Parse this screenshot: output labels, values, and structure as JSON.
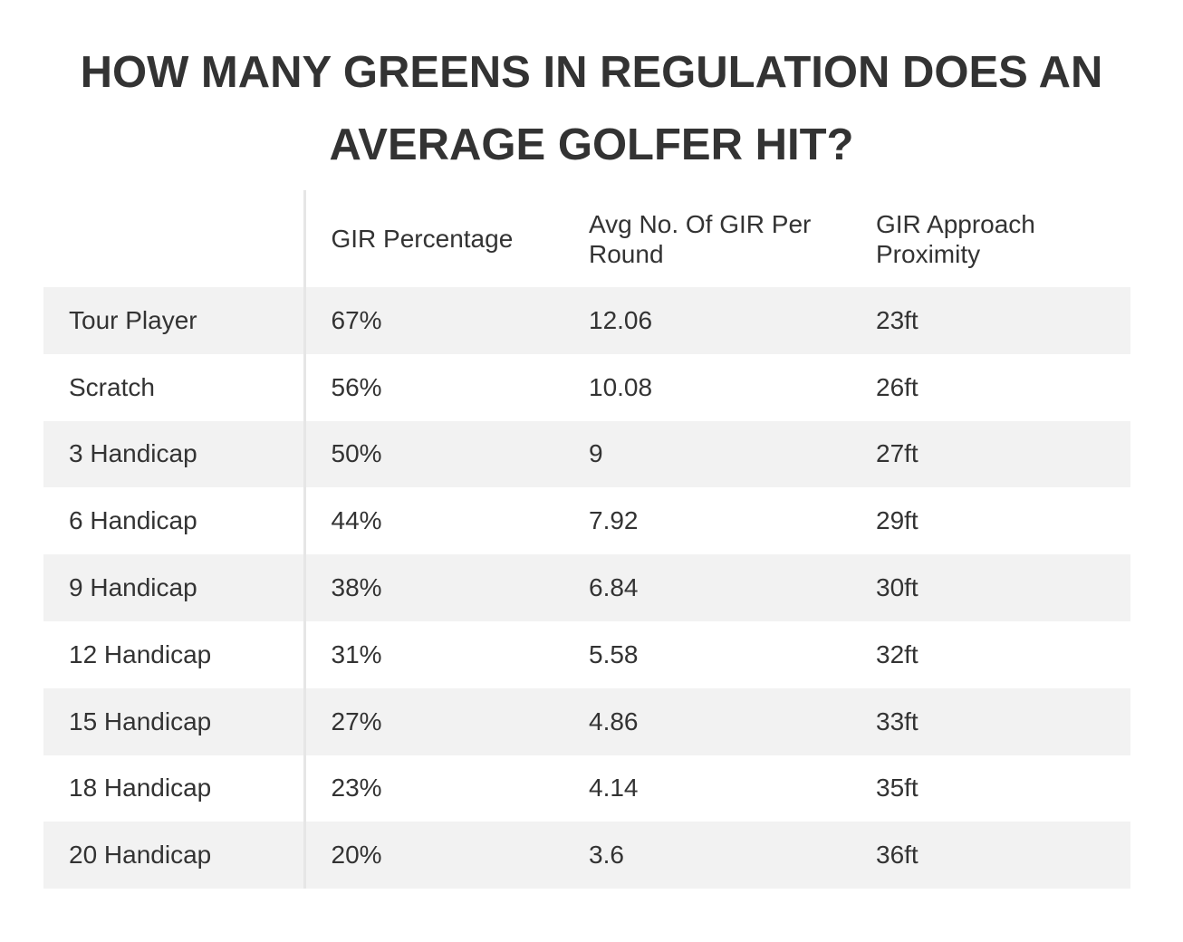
{
  "title": "HOW MANY GREENS IN REGULATION DOES AN AVERAGE GOLFER HIT?",
  "table": {
    "headers": [
      "",
      "GIR Percentage",
      "Avg No. Of GIR Per Round",
      "GIR Approach Proximity"
    ],
    "rows": [
      [
        "Tour Player",
        "67%",
        "12.06",
        "23ft"
      ],
      [
        "Scratch",
        "56%",
        "10.08",
        "26ft"
      ],
      [
        "3 Handicap",
        "50%",
        "9",
        "27ft"
      ],
      [
        "6 Handicap",
        "44%",
        "7.92",
        "29ft"
      ],
      [
        "9 Handicap",
        "38%",
        "6.84",
        "30ft"
      ],
      [
        "12 Handicap",
        "31%",
        "5.58",
        "32ft"
      ],
      [
        "15 Handicap",
        "27%",
        "4.86",
        "33ft"
      ],
      [
        "18 Handicap",
        "23%",
        "4.14",
        "35ft"
      ],
      [
        "20 Handicap",
        "20%",
        "3.6",
        "36ft"
      ]
    ]
  },
  "colors": {
    "text": "#333333",
    "row_stripe": "#f2f2f2",
    "divider": "#e6e6e6"
  }
}
